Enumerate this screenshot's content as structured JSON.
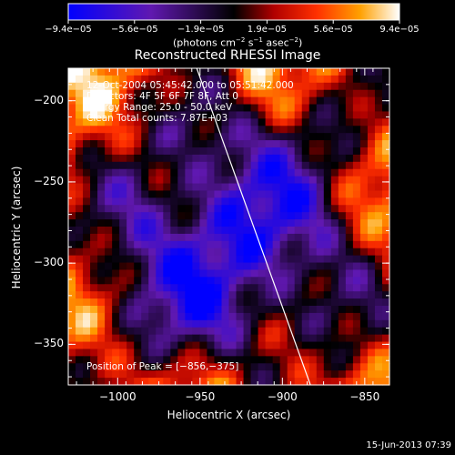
{
  "chart_data": {
    "type": "heatmap",
    "title": "Reconstructed RHESSI Image",
    "xlabel": "Heliocentric X (arcsec)",
    "ylabel": "Heliocentric Y (arcsec)",
    "xlim": [
      -1030,
      -835
    ],
    "ylim": [
      -375,
      -180
    ],
    "x_ticks": [
      {
        "value": -1000,
        "label": "−1000"
      },
      {
        "value": -950,
        "label": "−950"
      },
      {
        "value": -900,
        "label": "−900"
      },
      {
        "value": -850,
        "label": "−850"
      }
    ],
    "y_ticks": [
      {
        "value": -200,
        "label": "−200"
      },
      {
        "value": -250,
        "label": "−250"
      },
      {
        "value": -300,
        "label": "−300"
      },
      {
        "value": -350,
        "label": "−350"
      }
    ],
    "colorbar": {
      "min": -9.4e-05,
      "max": 9.4e-05,
      "tick_labels": [
        "−9.4e−05",
        "−5.6e−05",
        "−1.9e−05",
        "1.9e−05",
        "5.6e−05",
        "9.4e−05"
      ],
      "unit_parts": [
        "(photons cm",
        "−2",
        " s",
        "−1",
        " asec",
        "−2",
        ")"
      ]
    },
    "annotations": {
      "time": "12-Oct-2004 05:45:42.000 to 05:51:42.000",
      "detectors": "Detectors: 4F 5F 6F 7F 8F, Att 0",
      "energy": "Energy Range: 25.0 - 50.0 keV",
      "clean": "Clean    Total counts: 7.87E+03",
      "peak": "Position of Peak = [−856,−375]"
    },
    "limb_line": {
      "x": [
        -952,
        -883
      ],
      "y": [
        -180,
        -375
      ]
    },
    "colors": {
      "background": "#000000",
      "text": "#ffffff"
    }
  },
  "footer": {
    "date": "15-Jun-2013 07:39"
  }
}
